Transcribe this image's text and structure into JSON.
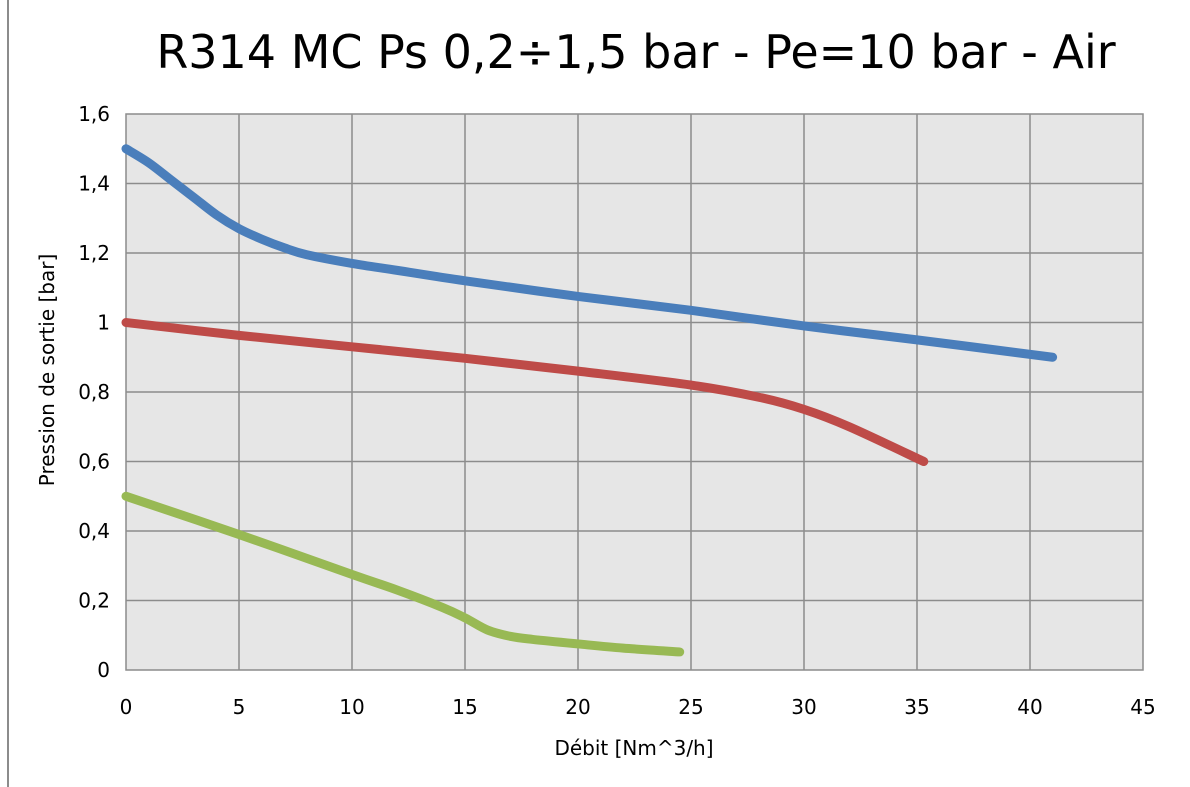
{
  "chart_data": {
    "type": "line",
    "title": "R314 MC Ps 0,2÷1,5 bar - Pe=10 bar - Air",
    "xlabel": "Débit [Nm^3/h]",
    "ylabel": "Pression de sortie [bar]",
    "xlim": [
      0,
      45
    ],
    "ylim": [
      0,
      1.6
    ],
    "x_ticks": [
      "0",
      "5",
      "10",
      "15",
      "20",
      "25",
      "30",
      "35",
      "40",
      "45"
    ],
    "y_ticks": [
      "0",
      "0,2",
      "0,4",
      "0,6",
      "0,8",
      "1",
      "1,2",
      "1,4",
      "1,6"
    ],
    "grid": true,
    "legend": "none",
    "series": [
      {
        "color": "#4a7ebb",
        "x": [
          0,
          1,
          2,
          3,
          4,
          5,
          6,
          7,
          8,
          10,
          12,
          15,
          20,
          25,
          30,
          35,
          41
        ],
        "y": [
          1.5,
          1.46,
          1.41,
          1.36,
          1.31,
          1.27,
          1.24,
          1.215,
          1.195,
          1.17,
          1.15,
          1.12,
          1.075,
          1.035,
          0.99,
          0.95,
          0.9
        ]
      },
      {
        "color": "#be4b48",
        "x": [
          0,
          5,
          10,
          15,
          20,
          25,
          28,
          30,
          32,
          35.3
        ],
        "y": [
          1.0,
          0.963,
          0.93,
          0.897,
          0.86,
          0.82,
          0.785,
          0.75,
          0.7,
          0.6
        ]
      },
      {
        "color": "#98b954",
        "x": [
          0,
          5,
          10,
          12,
          14,
          15,
          16,
          17,
          18,
          20,
          22,
          24.5
        ],
        "y": [
          0.5,
          0.39,
          0.275,
          0.23,
          0.18,
          0.15,
          0.115,
          0.097,
          0.088,
          0.075,
          0.063,
          0.052
        ]
      }
    ]
  }
}
